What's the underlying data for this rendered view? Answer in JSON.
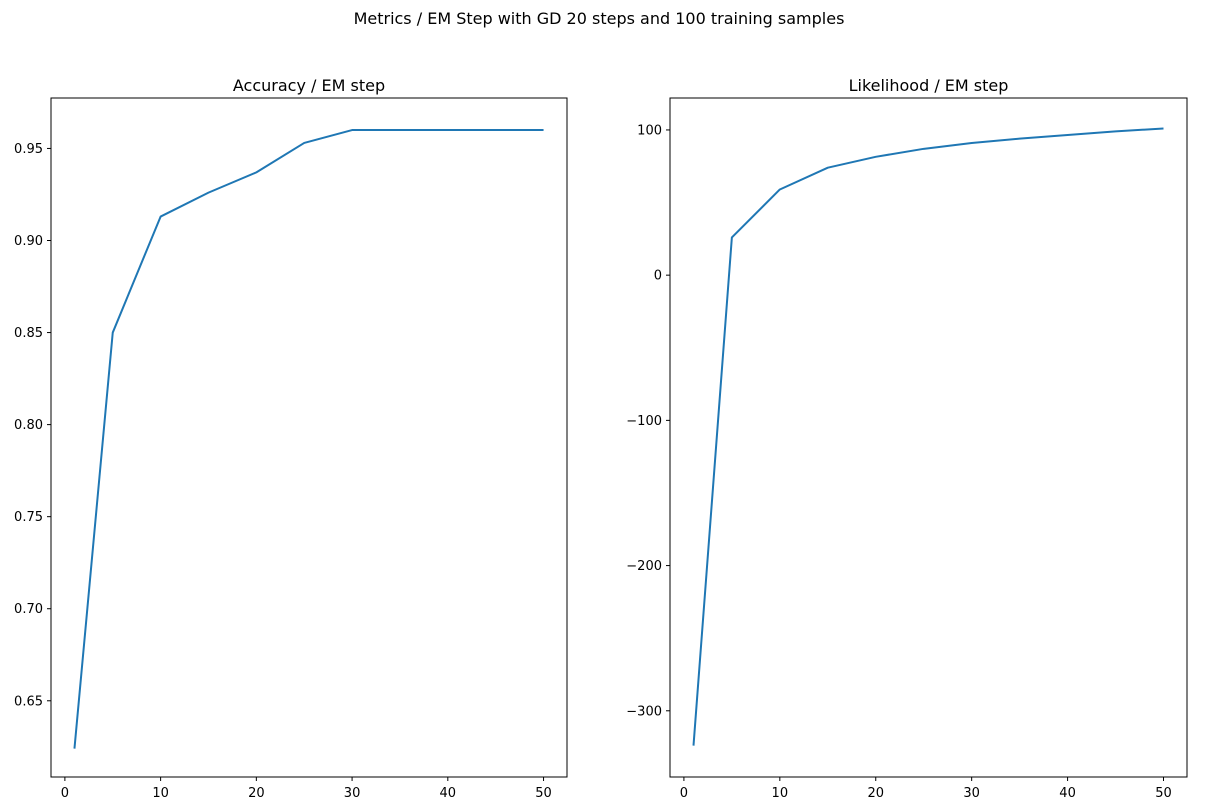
{
  "figure": {
    "suptitle": "Metrics / EM Step with GD 20 steps and 100 training samples"
  },
  "colors": {
    "line": "#1f77b4",
    "axes": "#000000",
    "background": "#ffffff"
  },
  "chart_data": [
    {
      "type": "line",
      "title": "Accuracy / EM step",
      "xlabel": "",
      "ylabel": "",
      "grid": false,
      "xlim": [
        -1.45,
        52.45
      ],
      "ylim": [
        0.6086,
        0.9774
      ],
      "xticks": [
        0,
        10,
        20,
        30,
        40,
        50
      ],
      "yticks": [
        0.65,
        0.7,
        0.75,
        0.8,
        0.85,
        0.9,
        0.95
      ],
      "ytick_labels": [
        "0.65",
        "0.70",
        "0.75",
        "0.80",
        "0.85",
        "0.90",
        "0.95"
      ],
      "xtick_labels": [
        "0",
        "10",
        "20",
        "30",
        "40",
        "50"
      ],
      "series": [
        {
          "x": [
            1,
            5,
            10,
            15,
            20,
            25,
            30,
            35,
            40,
            45,
            50
          ],
          "values": [
            0.624,
            0.85,
            0.913,
            0.926,
            0.937,
            0.953,
            0.96,
            0.96,
            0.96,
            0.96,
            0.96
          ]
        }
      ]
    },
    {
      "type": "line",
      "title": "Likelihood / EM step",
      "xlabel": "",
      "ylabel": "",
      "grid": false,
      "xlim": [
        -1.45,
        52.45
      ],
      "ylim": [
        -345.6,
        122.0
      ],
      "xticks": [
        0,
        10,
        20,
        30,
        40,
        50
      ],
      "yticks": [
        -300,
        -200,
        -100,
        0,
        100
      ],
      "ytick_labels": [
        "−300",
        "−200",
        "−100",
        "0",
        "100"
      ],
      "xtick_labels": [
        "0",
        "10",
        "20",
        "30",
        "40",
        "50"
      ],
      "series": [
        {
          "x": [
            1,
            5,
            10,
            15,
            20,
            25,
            30,
            35,
            40,
            45,
            50
          ],
          "values": [
            -324.0,
            26.0,
            59.0,
            74.0,
            81.5,
            87.0,
            91.0,
            94.0,
            96.5,
            99.0,
            101.0
          ]
        }
      ]
    }
  ]
}
